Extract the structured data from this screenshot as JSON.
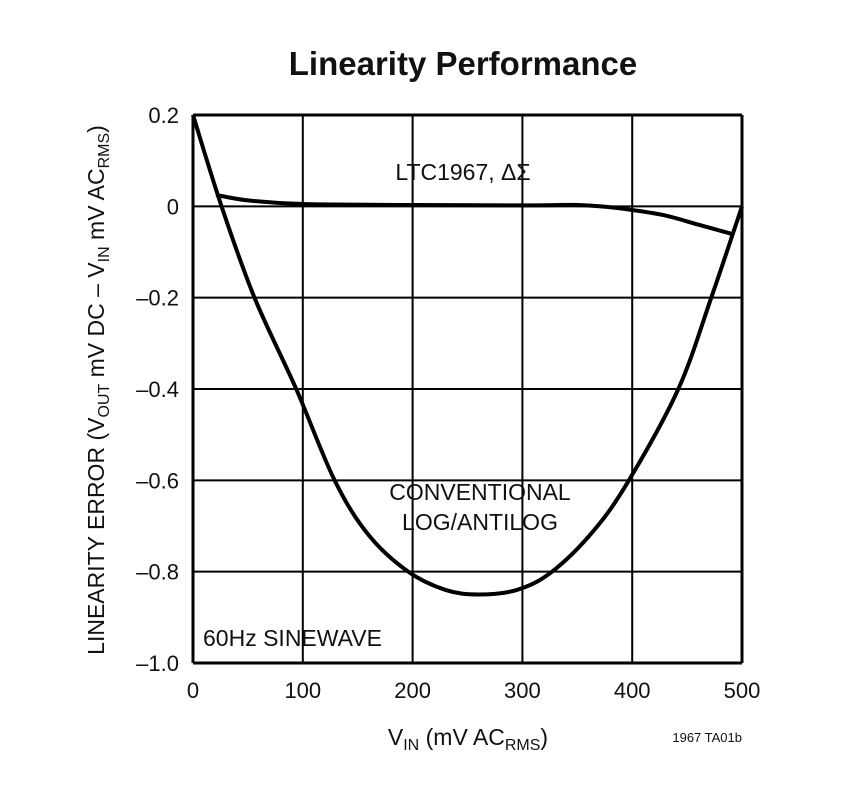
{
  "chart_data": {
    "type": "line",
    "title": "Linearity Performance",
    "xlabel": {
      "main": "V",
      "sub1": "IN",
      "mid": " (mV AC",
      "sub2": "RMS",
      "end": ")"
    },
    "ylabel": {
      "p1": "LINEARITY ERROR (V",
      "s1": "OUT",
      "p2": " mV DC – V",
      "s2": "IN",
      "p3": " mV AC",
      "s3": "RMS",
      "p4": ")"
    },
    "xlim": [
      0,
      500
    ],
    "ylim": [
      -1.0,
      0.2
    ],
    "x_ticks": [
      "0",
      "100",
      "200",
      "300",
      "400",
      "500"
    ],
    "y_ticks": [
      "0.2",
      "0",
      "–0.2",
      "–0.4",
      "–0.6",
      "–0.8",
      "–1.0"
    ],
    "grid": true,
    "annotations": {
      "series1": "LTC1967, ΔΣ",
      "series2_line1": "CONVENTIONAL",
      "series2_line2": "LOG/ANTILOG",
      "condition": "60Hz SINEWAVE",
      "figure_id": "1967 TA01b"
    },
    "series": [
      {
        "name": "LTC1967, ΔΣ",
        "x": [
          21,
          50,
          100,
          200,
          300,
          350,
          380,
          400,
          430,
          460,
          490
        ],
        "y": [
          0.025,
          0.013,
          0.005,
          0.003,
          0.002,
          0.003,
          -0.002,
          -0.008,
          -0.02,
          -0.04,
          -0.06
        ]
      },
      {
        "name": "CONVENTIONAL LOG/ANTILOG",
        "x": [
          0,
          26,
          56,
          94,
          129,
          160,
          196,
          230,
          260,
          295,
          327,
          365,
          397,
          442,
          472,
          500
        ],
        "y": [
          0.2,
          0.0,
          -0.2,
          -0.4,
          -0.6,
          -0.72,
          -0.8,
          -0.84,
          -0.85,
          -0.84,
          -0.8,
          -0.71,
          -0.6,
          -0.4,
          -0.2,
          0.0
        ]
      }
    ],
    "line_color": "#000000"
  }
}
